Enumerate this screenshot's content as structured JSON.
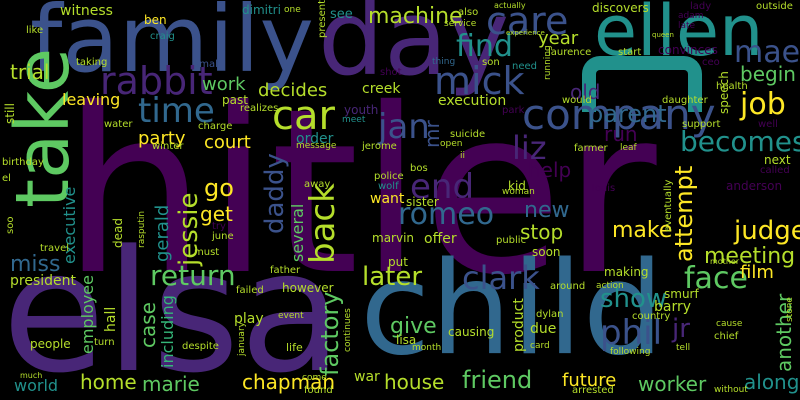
{
  "image": {
    "background": "#000000"
  },
  "palette": {
    "p1": "#440154",
    "p2": "#3b528b",
    "p3": "#21918c",
    "p4": "#5ec962",
    "p5": "#31688e",
    "p6": "#b5de2b",
    "p7": "#fde725",
    "p8": "#35b779",
    "p9": "#482677"
  },
  "words": [
    {
      "text": "hitler"
    },
    {
      "text": "elsa"
    },
    {
      "text": "child"
    },
    {
      "text": "family"
    },
    {
      "text": "day"
    },
    {
      "text": "ellen"
    },
    {
      "text": "take"
    },
    {
      "text": "company"
    },
    {
      "text": "care"
    },
    {
      "text": "rabbit"
    },
    {
      "text": "mick"
    },
    {
      "text": "car"
    },
    {
      "text": "find"
    },
    {
      "text": "mae"
    },
    {
      "text": "job"
    },
    {
      "text": "time"
    },
    {
      "text": "jan"
    },
    {
      "text": "liz"
    },
    {
      "text": "end"
    },
    {
      "text": "romeo"
    },
    {
      "text": "back"
    },
    {
      "text": "daddy"
    },
    {
      "text": "jessie"
    },
    {
      "text": "becomes"
    },
    {
      "text": "parent"
    },
    {
      "text": "return"
    },
    {
      "text": "clark"
    },
    {
      "text": "later"
    },
    {
      "text": "face"
    },
    {
      "text": "show"
    },
    {
      "text": "phil"
    },
    {
      "text": "friend"
    },
    {
      "text": "factory"
    },
    {
      "text": "miss"
    },
    {
      "text": "judge"
    },
    {
      "text": "meeting"
    },
    {
      "text": "attempt"
    },
    {
      "text": "make"
    },
    {
      "text": "new"
    },
    {
      "text": "stop"
    },
    {
      "text": "go"
    },
    {
      "text": "get"
    },
    {
      "text": "court"
    },
    {
      "text": "party"
    },
    {
      "text": "decides"
    },
    {
      "text": "work"
    },
    {
      "text": "machine"
    },
    {
      "text": "year"
    },
    {
      "text": "begin"
    },
    {
      "text": "old"
    },
    {
      "text": "run"
    },
    {
      "text": "help"
    },
    {
      "text": "want"
    },
    {
      "text": "give"
    },
    {
      "text": "house"
    },
    {
      "text": "home"
    },
    {
      "text": "marie"
    },
    {
      "text": "chapman"
    },
    {
      "text": "worker"
    },
    {
      "text": "along"
    },
    {
      "text": "future"
    },
    {
      "text": "world"
    },
    {
      "text": "film"
    },
    {
      "text": "another"
    },
    {
      "text": "jr"
    },
    {
      "text": "case"
    },
    {
      "text": "including"
    },
    {
      "text": "employee"
    },
    {
      "text": "executive"
    },
    {
      "text": "gerald"
    },
    {
      "text": "several"
    },
    {
      "text": "trial"
    },
    {
      "text": "leaving"
    },
    {
      "text": "execution"
    },
    {
      "text": "order"
    },
    {
      "text": "creek"
    },
    {
      "text": "mr"
    },
    {
      "text": "witness"
    },
    {
      "text": "ben"
    },
    {
      "text": "dimitri"
    },
    {
      "text": "see"
    },
    {
      "text": "also"
    },
    {
      "text": "discovers"
    },
    {
      "text": "lady"
    },
    {
      "text": "outside"
    },
    {
      "text": "craig"
    },
    {
      "text": "laurence"
    },
    {
      "text": "start"
    },
    {
      "text": "convinces"
    },
    {
      "text": "ceo"
    },
    {
      "text": "son"
    },
    {
      "text": "need"
    },
    {
      "text": "adam"
    },
    {
      "text": "late"
    },
    {
      "text": "like"
    },
    {
      "text": "taking"
    },
    {
      "text": "small"
    },
    {
      "text": "present"
    },
    {
      "text": "thing"
    },
    {
      "text": "shot"
    },
    {
      "text": "running"
    },
    {
      "text": "would"
    },
    {
      "text": "daughter"
    },
    {
      "text": "speech"
    },
    {
      "text": "health"
    },
    {
      "text": "support"
    },
    {
      "text": "well"
    },
    {
      "text": "past"
    },
    {
      "text": "realizes"
    },
    {
      "text": "youth"
    },
    {
      "text": "meet"
    },
    {
      "text": "suicide"
    },
    {
      "text": "park"
    },
    {
      "text": "anderson"
    },
    {
      "text": "next"
    },
    {
      "text": "called"
    },
    {
      "text": "soon"
    },
    {
      "text": "eventually"
    },
    {
      "text": "dead"
    },
    {
      "text": "hall"
    },
    {
      "text": "offer"
    },
    {
      "text": "marvin"
    },
    {
      "text": "sister"
    },
    {
      "text": "police"
    },
    {
      "text": "wolf"
    },
    {
      "text": "away"
    },
    {
      "text": "kid"
    },
    {
      "text": "louis"
    },
    {
      "text": "woman"
    },
    {
      "text": "public"
    },
    {
      "text": "june"
    },
    {
      "text": "try"
    },
    {
      "text": "must"
    },
    {
      "text": "rasputin"
    },
    {
      "text": "travel"
    },
    {
      "text": "president"
    },
    {
      "text": "father"
    },
    {
      "text": "put"
    },
    {
      "text": "making"
    },
    {
      "text": "smurf"
    },
    {
      "text": "barry"
    },
    {
      "text": "country"
    },
    {
      "text": "dylan"
    },
    {
      "text": "product"
    },
    {
      "text": "around"
    },
    {
      "text": "action"
    },
    {
      "text": "due"
    },
    {
      "text": "failed"
    },
    {
      "text": "however"
    },
    {
      "text": "play"
    },
    {
      "text": "event"
    },
    {
      "text": "causing"
    },
    {
      "text": "lisa"
    },
    {
      "text": "people"
    },
    {
      "text": "turn"
    },
    {
      "text": "despite"
    },
    {
      "text": "january"
    },
    {
      "text": "life"
    },
    {
      "text": "month"
    },
    {
      "text": "continues"
    },
    {
      "text": "war"
    },
    {
      "text": "come"
    },
    {
      "text": "found"
    },
    {
      "text": "arrested"
    },
    {
      "text": "card"
    },
    {
      "text": "following"
    },
    {
      "text": "chief"
    },
    {
      "text": "cause"
    },
    {
      "text": "tell"
    },
    {
      "text": "without"
    },
    {
      "text": "stone"
    },
    {
      "text": "much"
    },
    {
      "text": "still"
    },
    {
      "text": "birthday"
    },
    {
      "text": "soo"
    },
    {
      "text": "el"
    },
    {
      "text": "water"
    },
    {
      "text": "charge"
    },
    {
      "text": "winter"
    },
    {
      "text": "message"
    },
    {
      "text": "jerome"
    },
    {
      "text": "open"
    },
    {
      "text": "farmer"
    },
    {
      "text": "leaf"
    },
    {
      "text": "bos"
    },
    {
      "text": "ii"
    },
    {
      "text": "one"
    },
    {
      "text": "service"
    },
    {
      "text": "experience"
    },
    {
      "text": "actually"
    },
    {
      "text": "queen"
    },
    {
      "text": "mother"
    }
  ]
}
